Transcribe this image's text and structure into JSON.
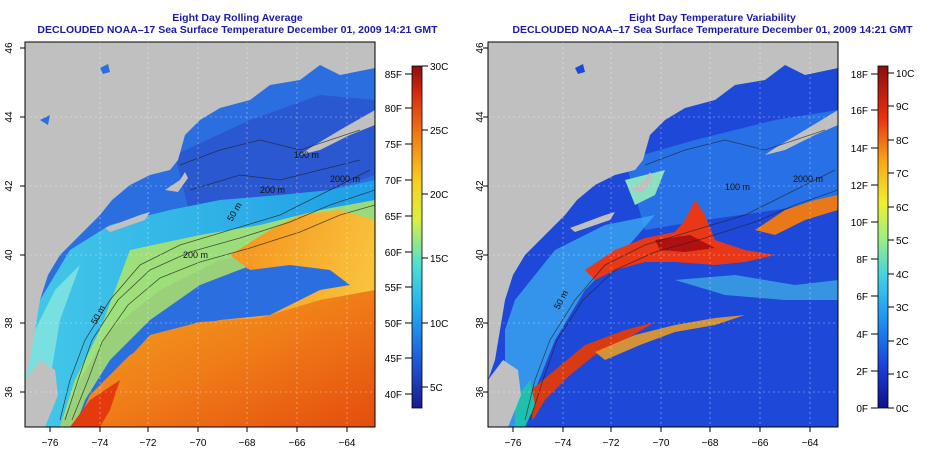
{
  "left_panel": {
    "title_line1": "Eight Day Rolling Average",
    "title_line2": "DECLOUDED NOAA–17 Sea Surface Temperature December 01, 2009 14:21 GMT",
    "lon_ticks": [
      "−76",
      "−74",
      "−72",
      "−70",
      "−68",
      "−66",
      "−64"
    ],
    "lat_ticks": [
      "46",
      "44",
      "42",
      "40",
      "38",
      "36"
    ],
    "colorbar_f_ticks": [
      "85F",
      "80F",
      "75F",
      "70F",
      "65F",
      "60F",
      "55F",
      "50F",
      "45F",
      "40F"
    ],
    "colorbar_c_ticks": [
      "30C",
      "25C",
      "20C",
      "15C",
      "10C",
      "5C"
    ],
    "contour_labels": [
      "100 m",
      "2000 m",
      "200 m",
      "50 m",
      "200 m",
      "50 m"
    ]
  },
  "right_panel": {
    "title_line1": "Eight Day Temperature Variability",
    "title_line2": "DECLOUDED NOAA–17 Sea Surface Temperature December 01, 2009 14:21 GMT",
    "lon_ticks": [
      "−76",
      "−74",
      "−72",
      "−70",
      "−68",
      "−66",
      "−64"
    ],
    "lat_ticks": [
      "46",
      "44",
      "42",
      "40",
      "38",
      "36"
    ],
    "colorbar_f_ticks": [
      "18F",
      "16F",
      "14F",
      "12F",
      "10F",
      "8F",
      "6F",
      "4F",
      "2F",
      "0F"
    ],
    "colorbar_c_ticks": [
      "10C",
      "9C",
      "8C",
      "7C",
      "6C",
      "5C",
      "4C",
      "3C",
      "2C",
      "1C",
      "0C"
    ],
    "contour_labels": [
      "100 m",
      "2000 m",
      "50 m"
    ]
  },
  "colors": {
    "land": "#c0c0c0",
    "title": "#1a1aa6",
    "ocean_cold": "#1f5fd8",
    "ocean_warm": "#f07a18",
    "variability_low": "#1a3fd0",
    "variability_high": "#c81010"
  }
}
